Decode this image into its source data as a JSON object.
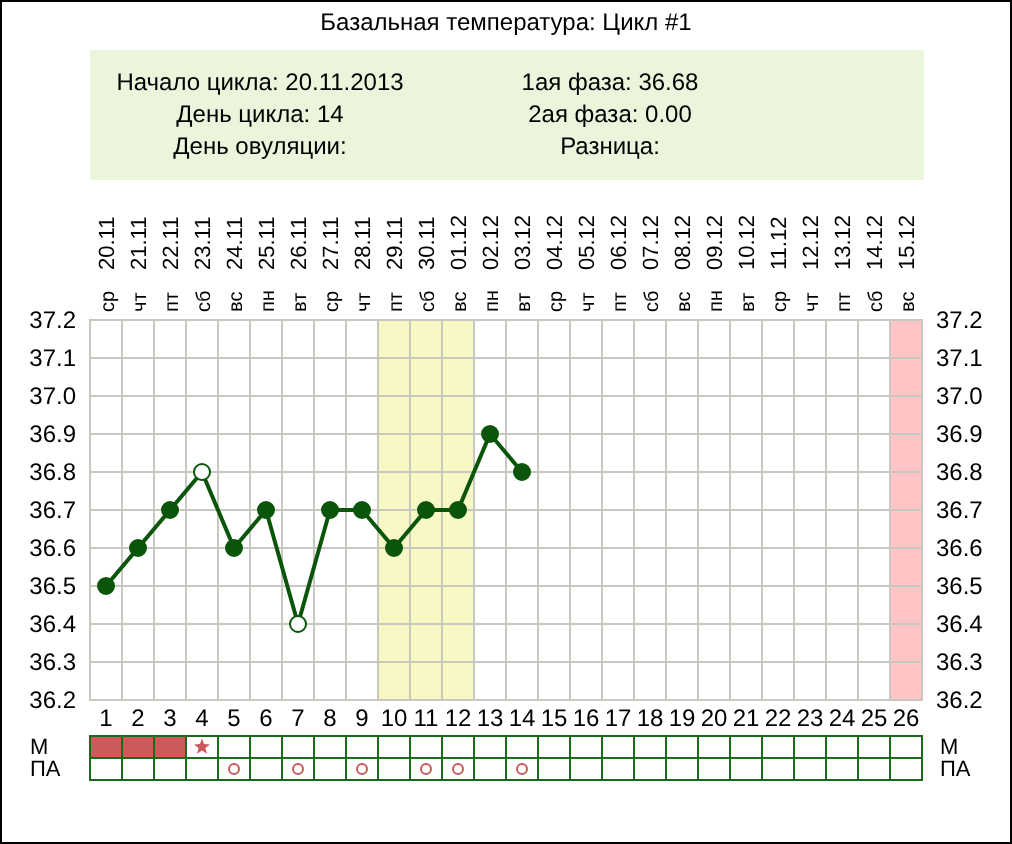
{
  "chart_data": [
    {
      "type": "other",
      "annotations": [
        "Начало цикла: 20.11.2013",
        "День цикла: 14",
        "День овуляции:",
        "1ая фаза: 36.68",
        "2ая фаза: 0.00",
        "Разница:"
      ]
    },
    {
      "type": "line",
      "title": "Базальная температура: Цикл #1",
      "annotations": [
        "ср",
        "чт",
        "пт",
        "сб",
        "вс",
        "пн",
        "вт",
        "ср",
        "чт",
        "пт",
        "сб",
        "вс",
        "пн",
        "вт",
        "ср",
        "чт",
        "пт",
        "сб",
        "вс",
        "пн",
        "вт",
        "ср",
        "чт",
        "пт",
        "сб",
        "вс"
      ],
      "series": [
        {
          "x": [
            1,
            2,
            3,
            4,
            5,
            6,
            7,
            8,
            9,
            10,
            11,
            12,
            13,
            14
          ],
          "values": [
            36.5,
            36.6,
            36.7,
            36.8,
            36.6,
            36.7,
            36.4,
            36.7,
            36.7,
            36.6,
            36.7,
            36.7,
            36.9,
            36.8
          ],
          "color": "#0b550b",
          "colors": [
            "#0b550b",
            "#0b550b",
            "#0b550b",
            "#ffffff",
            "#0b550b",
            "#0b550b",
            "#ffffff",
            "#0b550b",
            "#0b550b",
            "#0b550b",
            "#0b550b",
            "#0b550b",
            "#0b550b",
            "#0b550b"
          ]
        }
      ],
      "marker": "circle",
      "line_style": "solid",
      "grid": true,
      "xlim": [
        0.5,
        26.5
      ],
      "xticks": [
        1,
        2,
        3,
        4,
        5,
        6,
        7,
        8,
        9,
        10,
        11,
        12,
        13,
        14,
        15,
        16,
        17,
        18,
        19,
        20,
        21,
        22,
        23,
        24,
        25,
        26
      ],
      "x2lim": [
        "2013-11-19T12:00",
        "2013-12-15T12:00"
      ],
      "x2ticks": [
        {
          "value": "2013-11-20",
          "label": "20.11"
        },
        {
          "value": "2013-11-21",
          "label": "21.11"
        },
        {
          "value": "2013-11-22",
          "label": "22.11"
        },
        {
          "value": "2013-11-23",
          "label": "23.11"
        },
        {
          "value": "2013-11-24",
          "label": "24.11"
        },
        {
          "value": "2013-11-25",
          "label": "25.11"
        },
        {
          "value": "2013-11-26",
          "label": "26.11"
        },
        {
          "value": "2013-11-27",
          "label": "27.11"
        },
        {
          "value": "2013-11-28",
          "label": "28.11"
        },
        {
          "value": "2013-11-29",
          "label": "29.11"
        },
        {
          "value": "2013-11-30",
          "label": "30.11"
        },
        {
          "value": "2013-12-01",
          "label": "01.12"
        },
        {
          "value": "2013-12-02",
          "label": "02.12"
        },
        {
          "value": "2013-12-03",
          "label": "03.12"
        },
        {
          "value": "2013-12-04",
          "label": "04.12"
        },
        {
          "value": "2013-12-05",
          "label": "05.12"
        },
        {
          "value": "2013-12-06",
          "label": "06.12"
        },
        {
          "value": "2013-12-07",
          "label": "07.12"
        },
        {
          "value": "2013-12-08",
          "label": "08.12"
        },
        {
          "value": "2013-12-09",
          "label": "09.12"
        },
        {
          "value": "2013-12-10",
          "label": "10.12"
        },
        {
          "value": "2013-12-11",
          "label": "11.12"
        },
        {
          "value": "2013-12-12",
          "label": "12.12"
        },
        {
          "value": "2013-12-13",
          "label": "13.12"
        },
        {
          "value": "2013-12-14",
          "label": "14.12"
        },
        {
          "value": "2013-12-15",
          "label": "15.12"
        }
      ],
      "ylim": [
        36.2,
        37.2
      ],
      "yticks": [
        36.2,
        36.3,
        36.4,
        36.5,
        36.6,
        36.7,
        36.8,
        36.9,
        {
          "value": 37,
          "label": "37.0"
        },
        37.1,
        37.2
      ],
      "y2lim": [
        36.2,
        37.2
      ],
      "y2ticks": [
        36.2,
        36.3,
        36.4,
        36.5,
        36.6,
        36.7,
        36.8,
        36.9,
        {
          "value": 37,
          "label": "37.0"
        },
        37.1,
        37.2
      ],
      "bands": [
        {
          "axis": "x",
          "from": 9.5,
          "to": 12.5,
          "color": "#f8f8c4"
        },
        {
          "axis": "x",
          "from": 25.5,
          "to": 26.5,
          "color": "#ffc4c4"
        }
      ]
    },
    {
      "type": "other",
      "y_categories": [
        "М",
        "ПА"
      ],
      "y2_categories": [
        "М",
        "ПА"
      ]
    }
  ]
}
